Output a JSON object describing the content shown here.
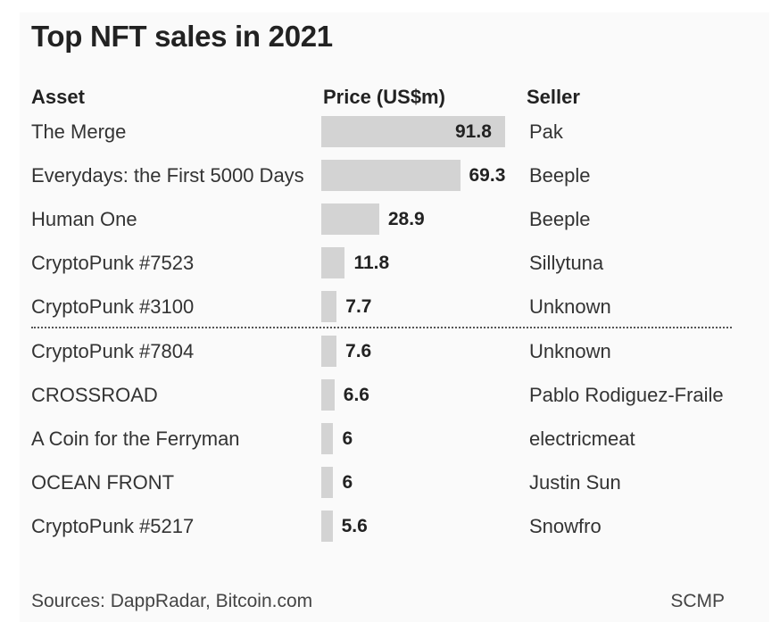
{
  "chart_data": {
    "type": "bar",
    "title": "Top NFT sales in 2021",
    "columns": {
      "asset": "Asset",
      "price": "Price (US$m)",
      "seller": "Seller"
    },
    "rows": [
      {
        "asset": "The Merge",
        "value": 91.8,
        "label": "91.8",
        "seller": "Pak"
      },
      {
        "asset": "Everydays: the First 5000 Days",
        "value": 69.3,
        "label": "69.3",
        "seller": "Beeple"
      },
      {
        "asset": "Human One",
        "value": 28.9,
        "label": "28.9",
        "seller": "Beeple"
      },
      {
        "asset": "CryptoPunk #7523",
        "value": 11.8,
        "label": "11.8",
        "seller": "Sillytuna"
      },
      {
        "asset": "CryptoPunk #3100",
        "value": 7.7,
        "label": "7.7",
        "seller": "Unknown"
      },
      {
        "asset": "CryptoPunk #7804",
        "value": 7.6,
        "label": "7.6",
        "seller": "Unknown"
      },
      {
        "asset": "CROSSROAD",
        "value": 6.6,
        "label": "6.6",
        "seller": "Pablo Rodiguez-Fraile"
      },
      {
        "asset": "A Coin for the Ferryman",
        "value": 6,
        "label": "6",
        "seller": "electricmeat"
      },
      {
        "asset": "OCEAN FRONT",
        "value": 6,
        "label": "6",
        "seller": "Justin Sun"
      },
      {
        "asset": "CryptoPunk #5217",
        "value": 5.6,
        "label": "5.6",
        "seller": "Snowfro"
      }
    ],
    "colors": {
      "bar": "#d3d3d3",
      "divider": "#555555"
    }
  },
  "footer": {
    "sources": "Sources: DappRadar, Bitcoin.com",
    "credit": "SCMP"
  }
}
